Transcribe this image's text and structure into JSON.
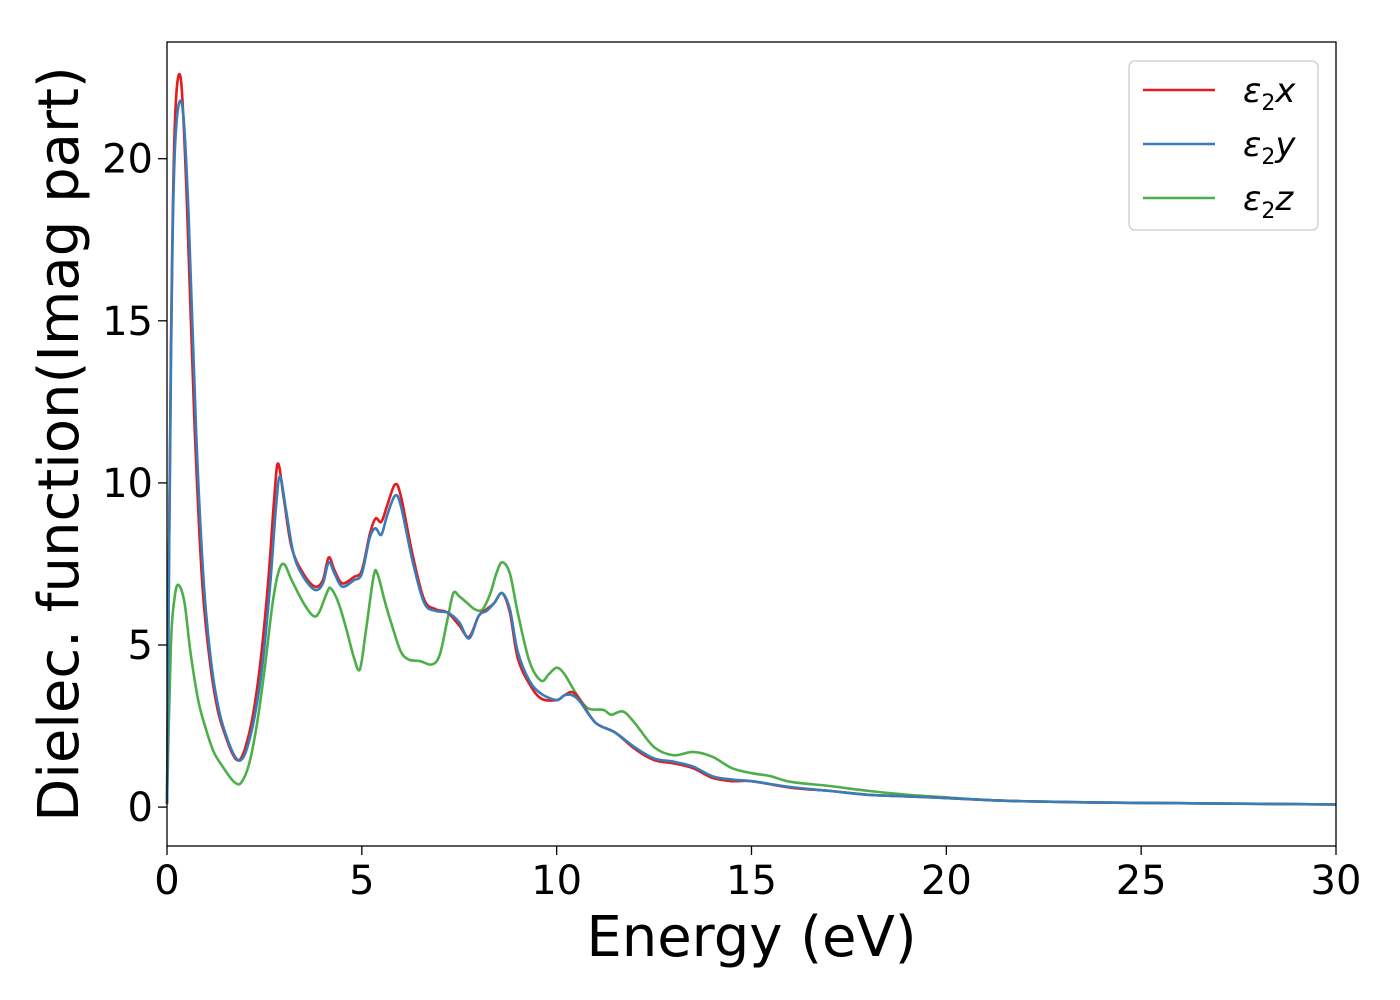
{
  "chart_data": {
    "type": "line",
    "title": "",
    "xlabel": "Energy (eV)",
    "ylabel": "Dielec. function(Imag part)",
    "xlim": [
      0,
      30
    ],
    "ylim": [
      -1.2,
      23.6
    ],
    "xticks": [
      0,
      5,
      10,
      15,
      20,
      25,
      30
    ],
    "yticks": [
      0,
      5,
      10,
      15,
      20
    ],
    "legend": {
      "placement": "top-right"
    },
    "grid": false,
    "series": [
      {
        "name": "ε2x",
        "legend_base": "ε",
        "legend_sub": "2",
        "legend_var": "x",
        "color": "#e41a1c",
        "points": [
          [
            0,
            0.1
          ],
          [
            0.1,
            14
          ],
          [
            0.2,
            21
          ],
          [
            0.35,
            22.5
          ],
          [
            0.5,
            19
          ],
          [
            0.7,
            12
          ],
          [
            0.9,
            7
          ],
          [
            1.1,
            4.5
          ],
          [
            1.3,
            3
          ],
          [
            1.5,
            2.2
          ],
          [
            1.7,
            1.6
          ],
          [
            1.85,
            1.45
          ],
          [
            2.0,
            1.8
          ],
          [
            2.2,
            2.8
          ],
          [
            2.4,
            4.5
          ],
          [
            2.6,
            7
          ],
          [
            2.75,
            9.5
          ],
          [
            2.85,
            10.6
          ],
          [
            3.0,
            9.5
          ],
          [
            3.2,
            8
          ],
          [
            3.5,
            7.2
          ],
          [
            3.8,
            6.8
          ],
          [
            4.0,
            7.0
          ],
          [
            4.15,
            7.7
          ],
          [
            4.3,
            7.3
          ],
          [
            4.5,
            6.9
          ],
          [
            4.8,
            7.1
          ],
          [
            5.0,
            7.3
          ],
          [
            5.2,
            8.4
          ],
          [
            5.35,
            8.9
          ],
          [
            5.5,
            8.8
          ],
          [
            5.65,
            9.3
          ],
          [
            5.85,
            9.95
          ],
          [
            6.0,
            9.6
          ],
          [
            6.3,
            7.8
          ],
          [
            6.6,
            6.4
          ],
          [
            6.9,
            6.1
          ],
          [
            7.2,
            6.0
          ],
          [
            7.5,
            5.6
          ],
          [
            7.75,
            5.25
          ],
          [
            8.0,
            5.9
          ],
          [
            8.2,
            6.1
          ],
          [
            8.4,
            6.3
          ],
          [
            8.6,
            6.6
          ],
          [
            8.8,
            6.0
          ],
          [
            9.0,
            4.6
          ],
          [
            9.3,
            3.8
          ],
          [
            9.6,
            3.35
          ],
          [
            10.0,
            3.3
          ],
          [
            10.2,
            3.45
          ],
          [
            10.4,
            3.55
          ],
          [
            10.6,
            3.3
          ],
          [
            11.0,
            2.6
          ],
          [
            11.5,
            2.3
          ],
          [
            12.0,
            1.8
          ],
          [
            12.5,
            1.45
          ],
          [
            13.0,
            1.35
          ],
          [
            13.5,
            1.2
          ],
          [
            14.0,
            0.9
          ],
          [
            14.5,
            0.8
          ],
          [
            15.0,
            0.8
          ],
          [
            16.0,
            0.6
          ],
          [
            17.0,
            0.5
          ],
          [
            18.0,
            0.38
          ],
          [
            19.0,
            0.33
          ],
          [
            20.0,
            0.28
          ],
          [
            21.0,
            0.22
          ],
          [
            22.0,
            0.18
          ],
          [
            24.0,
            0.14
          ],
          [
            26.0,
            0.12
          ],
          [
            28.0,
            0.1
          ],
          [
            30.0,
            0.08
          ]
        ]
      },
      {
        "name": "ε2y",
        "legend_base": "ε",
        "legend_sub": "2",
        "legend_var": "y",
        "color": "#377eb8",
        "points": [
          [
            0,
            0.1
          ],
          [
            0.1,
            13.5
          ],
          [
            0.2,
            20.2
          ],
          [
            0.38,
            21.7
          ],
          [
            0.55,
            18.4
          ],
          [
            0.75,
            11.5
          ],
          [
            0.95,
            6.8
          ],
          [
            1.15,
            4.3
          ],
          [
            1.35,
            2.9
          ],
          [
            1.55,
            2.1
          ],
          [
            1.75,
            1.55
          ],
          [
            1.9,
            1.45
          ],
          [
            2.05,
            1.8
          ],
          [
            2.25,
            2.8
          ],
          [
            2.45,
            4.4
          ],
          [
            2.65,
            6.9
          ],
          [
            2.8,
            9.3
          ],
          [
            2.9,
            10.2
          ],
          [
            3.05,
            9.2
          ],
          [
            3.25,
            7.8
          ],
          [
            3.5,
            7.1
          ],
          [
            3.8,
            6.7
          ],
          [
            4.0,
            6.9
          ],
          [
            4.15,
            7.55
          ],
          [
            4.3,
            7.2
          ],
          [
            4.5,
            6.8
          ],
          [
            4.8,
            7.0
          ],
          [
            5.0,
            7.2
          ],
          [
            5.2,
            8.3
          ],
          [
            5.35,
            8.6
          ],
          [
            5.5,
            8.4
          ],
          [
            5.65,
            9.0
          ],
          [
            5.85,
            9.6
          ],
          [
            6.0,
            9.3
          ],
          [
            6.3,
            7.6
          ],
          [
            6.6,
            6.3
          ],
          [
            6.9,
            6.05
          ],
          [
            7.2,
            6.0
          ],
          [
            7.5,
            5.7
          ],
          [
            7.75,
            5.2
          ],
          [
            8.0,
            5.9
          ],
          [
            8.2,
            6.05
          ],
          [
            8.4,
            6.3
          ],
          [
            8.6,
            6.6
          ],
          [
            8.8,
            6.1
          ],
          [
            9.0,
            4.8
          ],
          [
            9.3,
            3.9
          ],
          [
            9.6,
            3.5
          ],
          [
            10.0,
            3.3
          ],
          [
            10.2,
            3.45
          ],
          [
            10.4,
            3.45
          ],
          [
            10.6,
            3.25
          ],
          [
            11.0,
            2.6
          ],
          [
            11.5,
            2.3
          ],
          [
            12.0,
            1.85
          ],
          [
            12.5,
            1.5
          ],
          [
            13.0,
            1.4
          ],
          [
            13.5,
            1.25
          ],
          [
            14.0,
            0.95
          ],
          [
            14.5,
            0.85
          ],
          [
            15.0,
            0.8
          ],
          [
            16.0,
            0.62
          ],
          [
            17.0,
            0.5
          ],
          [
            18.0,
            0.38
          ],
          [
            19.0,
            0.33
          ],
          [
            20.0,
            0.28
          ],
          [
            21.0,
            0.22
          ],
          [
            22.0,
            0.18
          ],
          [
            24.0,
            0.14
          ],
          [
            26.0,
            0.12
          ],
          [
            28.0,
            0.1
          ],
          [
            30.0,
            0.08
          ]
        ]
      },
      {
        "name": "ε2z",
        "legend_base": "ε",
        "legend_sub": "2",
        "legend_var": "z",
        "color": "#4daf4a",
        "points": [
          [
            0,
            0.1
          ],
          [
            0.1,
            5
          ],
          [
            0.2,
            6.5
          ],
          [
            0.3,
            6.85
          ],
          [
            0.45,
            6.3
          ],
          [
            0.6,
            4.8
          ],
          [
            0.8,
            3.3
          ],
          [
            1.0,
            2.4
          ],
          [
            1.2,
            1.7
          ],
          [
            1.4,
            1.3
          ],
          [
            1.6,
            0.95
          ],
          [
            1.75,
            0.75
          ],
          [
            1.9,
            0.75
          ],
          [
            2.1,
            1.3
          ],
          [
            2.3,
            2.5
          ],
          [
            2.5,
            4.2
          ],
          [
            2.7,
            6.2
          ],
          [
            2.85,
            7.2
          ],
          [
            3.0,
            7.5
          ],
          [
            3.2,
            7.0
          ],
          [
            3.5,
            6.3
          ],
          [
            3.75,
            5.9
          ],
          [
            3.9,
            6.0
          ],
          [
            4.1,
            6.6
          ],
          [
            4.2,
            6.75
          ],
          [
            4.4,
            6.3
          ],
          [
            4.6,
            5.5
          ],
          [
            4.8,
            4.6
          ],
          [
            4.95,
            4.25
          ],
          [
            5.1,
            5.4
          ],
          [
            5.3,
            7.1
          ],
          [
            5.4,
            7.2
          ],
          [
            5.6,
            6.3
          ],
          [
            5.8,
            5.5
          ],
          [
            6.0,
            4.8
          ],
          [
            6.2,
            4.55
          ],
          [
            6.5,
            4.5
          ],
          [
            6.8,
            4.4
          ],
          [
            7.0,
            4.7
          ],
          [
            7.2,
            5.8
          ],
          [
            7.35,
            6.6
          ],
          [
            7.5,
            6.5
          ],
          [
            7.7,
            6.3
          ],
          [
            7.9,
            6.1
          ],
          [
            8.1,
            6.1
          ],
          [
            8.3,
            6.6
          ],
          [
            8.45,
            7.2
          ],
          [
            8.6,
            7.55
          ],
          [
            8.8,
            7.2
          ],
          [
            9.0,
            6.0
          ],
          [
            9.3,
            4.5
          ],
          [
            9.6,
            3.9
          ],
          [
            9.8,
            4.1
          ],
          [
            10.0,
            4.3
          ],
          [
            10.2,
            4.1
          ],
          [
            10.5,
            3.5
          ],
          [
            10.8,
            3.05
          ],
          [
            11.2,
            3.0
          ],
          [
            11.4,
            2.85
          ],
          [
            11.7,
            2.95
          ],
          [
            12.0,
            2.6
          ],
          [
            12.5,
            1.85
          ],
          [
            13.0,
            1.6
          ],
          [
            13.5,
            1.7
          ],
          [
            14.0,
            1.55
          ],
          [
            14.5,
            1.2
          ],
          [
            15.0,
            1.05
          ],
          [
            15.5,
            0.95
          ],
          [
            16.0,
            0.78
          ],
          [
            17.0,
            0.65
          ],
          [
            18.0,
            0.5
          ],
          [
            19.0,
            0.38
          ],
          [
            20.0,
            0.3
          ],
          [
            21.0,
            0.22
          ],
          [
            22.0,
            0.18
          ],
          [
            24.0,
            0.14
          ],
          [
            26.0,
            0.12
          ],
          [
            28.0,
            0.1
          ],
          [
            30.0,
            0.08
          ]
        ]
      }
    ]
  }
}
